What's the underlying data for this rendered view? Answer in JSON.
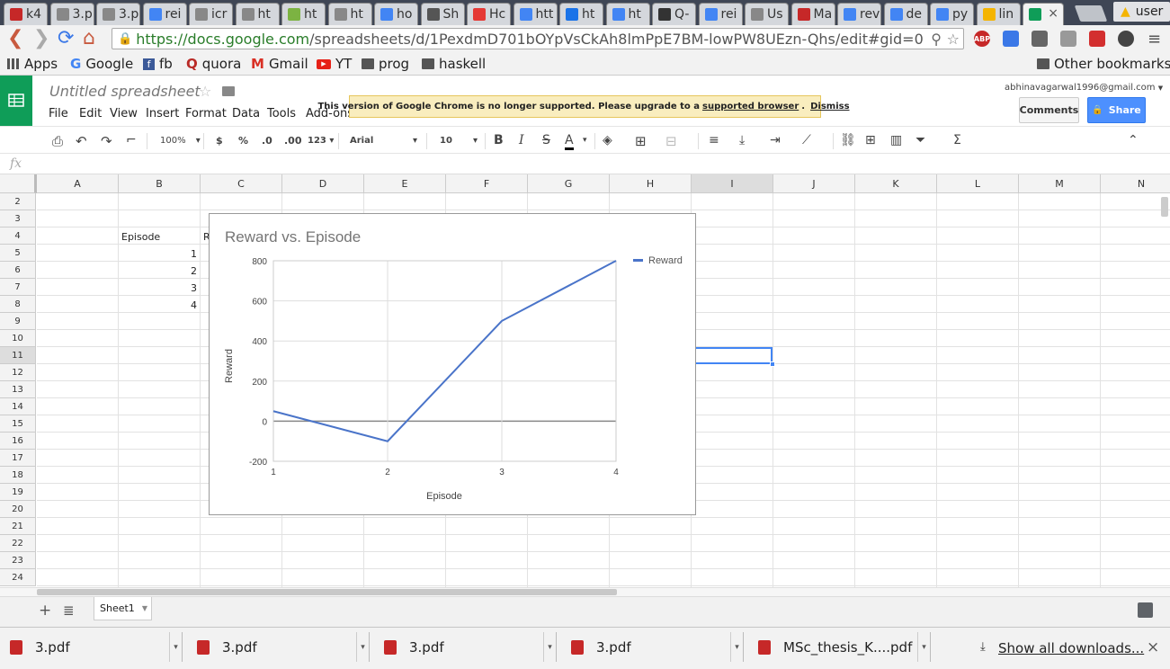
{
  "browser": {
    "tabs": [
      "k4",
      "3.p",
      "3.p",
      "rei",
      "icr",
      "ht",
      "ht",
      "ht",
      "ho",
      "Sh",
      "Hc",
      "htt",
      "ht",
      "ht",
      "Q-",
      "rei",
      "Us",
      "Ma",
      "rev",
      "de",
      "py",
      "lin",
      ""
    ],
    "profile_name": "user",
    "url_host": "https://docs.google.com",
    "url_path": "/spreadsheets/d/1PexdmD701bOYpVsCkAh8lmPpE7BM-lowPW8UEzn-Qhs/edit#gid=0",
    "extensions": [
      "ABP"
    ]
  },
  "bookmarks": [
    "Apps",
    "Google",
    "fb",
    "quora",
    "Gmail",
    "YT",
    "prog",
    "haskell"
  ],
  "other_bookmarks": "Other bookmarks",
  "sheets": {
    "title": "Untitled spreadsheet",
    "menus": [
      "File",
      "Edit",
      "View",
      "Insert",
      "Format",
      "Data",
      "Tools",
      "Add-ons"
    ],
    "notice": {
      "text": "This version of Google Chrome is no longer supported. Please upgrade to a",
      "link": "supported browser",
      "dismiss": "Dismiss"
    },
    "account": "abhinavagarwal1996@gmail.com",
    "comments_label": "Comments",
    "share_label": "Share",
    "toolbar": {
      "zoom": "100%",
      "currency": "$",
      "percent": "%",
      "dec_less": ".0",
      "dec_more": ".00",
      "more_formats": "123",
      "font": "Arial",
      "size": "10",
      "bold": "B",
      "italic": "I",
      "strike": "S",
      "text_color": "A",
      "sigma": "Σ"
    },
    "fx_label": "fx",
    "columns": [
      "A",
      "B",
      "C",
      "D",
      "E",
      "F",
      "G",
      "H",
      "I",
      "J",
      "K",
      "L",
      "M",
      "N"
    ],
    "rows": [
      "2",
      "3",
      "4",
      "5",
      "6",
      "7",
      "8",
      "9",
      "10",
      "11",
      "12",
      "13",
      "14",
      "15",
      "16",
      "17",
      "18",
      "19",
      "20",
      "21",
      "22",
      "23",
      "24"
    ],
    "cells": {
      "b4": "Episode",
      "c4_partial": "R",
      "b5": "1",
      "b6": "2",
      "b7": "3",
      "b8": "4"
    },
    "sheet_tab": "Sheet1",
    "add_sheet": "+",
    "sheet_list": "≣"
  },
  "chart_data": {
    "type": "line",
    "title": "Reward vs. Episode",
    "xlabel": "Episode",
    "ylabel": "Reward",
    "x": [
      1,
      2,
      3,
      4
    ],
    "series": [
      {
        "name": "Reward",
        "values": [
          50,
          -100,
          500,
          800
        ]
      }
    ],
    "xlim": [
      1,
      4
    ],
    "ylim": [
      -200,
      800
    ],
    "yticks": [
      -200,
      0,
      200,
      400,
      600,
      800
    ],
    "xticks": [
      1,
      2,
      3,
      4
    ],
    "legend": "right",
    "grid": true,
    "line_color": "#4a74c9"
  },
  "downloads": {
    "items": [
      "3.pdf",
      "3.pdf",
      "3.pdf",
      "3.pdf",
      "MSc_thesis_K....pdf"
    ],
    "show_all": "Show all downloads...",
    "close": "×"
  }
}
